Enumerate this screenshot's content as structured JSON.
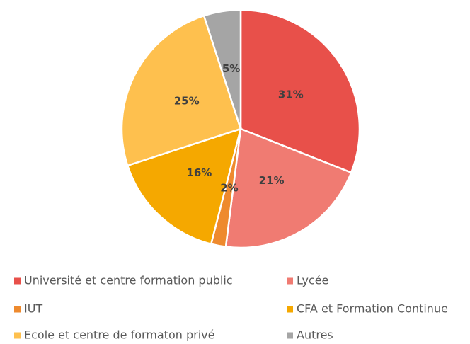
{
  "chart_data": {
    "type": "pie",
    "categories": [
      "Université et centre formation public",
      "Lycée",
      "IUT",
      "CFA et Formation Continue",
      "Ecole et centre de formaton privé",
      "Autres"
    ],
    "values": [
      31,
      21,
      2,
      16,
      25,
      5
    ],
    "value_labels": [
      "31%",
      "21%",
      "2%",
      "16%",
      "25%",
      "5%"
    ],
    "colors": [
      "#e8504a",
      "#f07b72",
      "#ee8a2e",
      "#f5a800",
      "#fec04e",
      "#a5a5a5"
    ],
    "legend": "bottom"
  }
}
